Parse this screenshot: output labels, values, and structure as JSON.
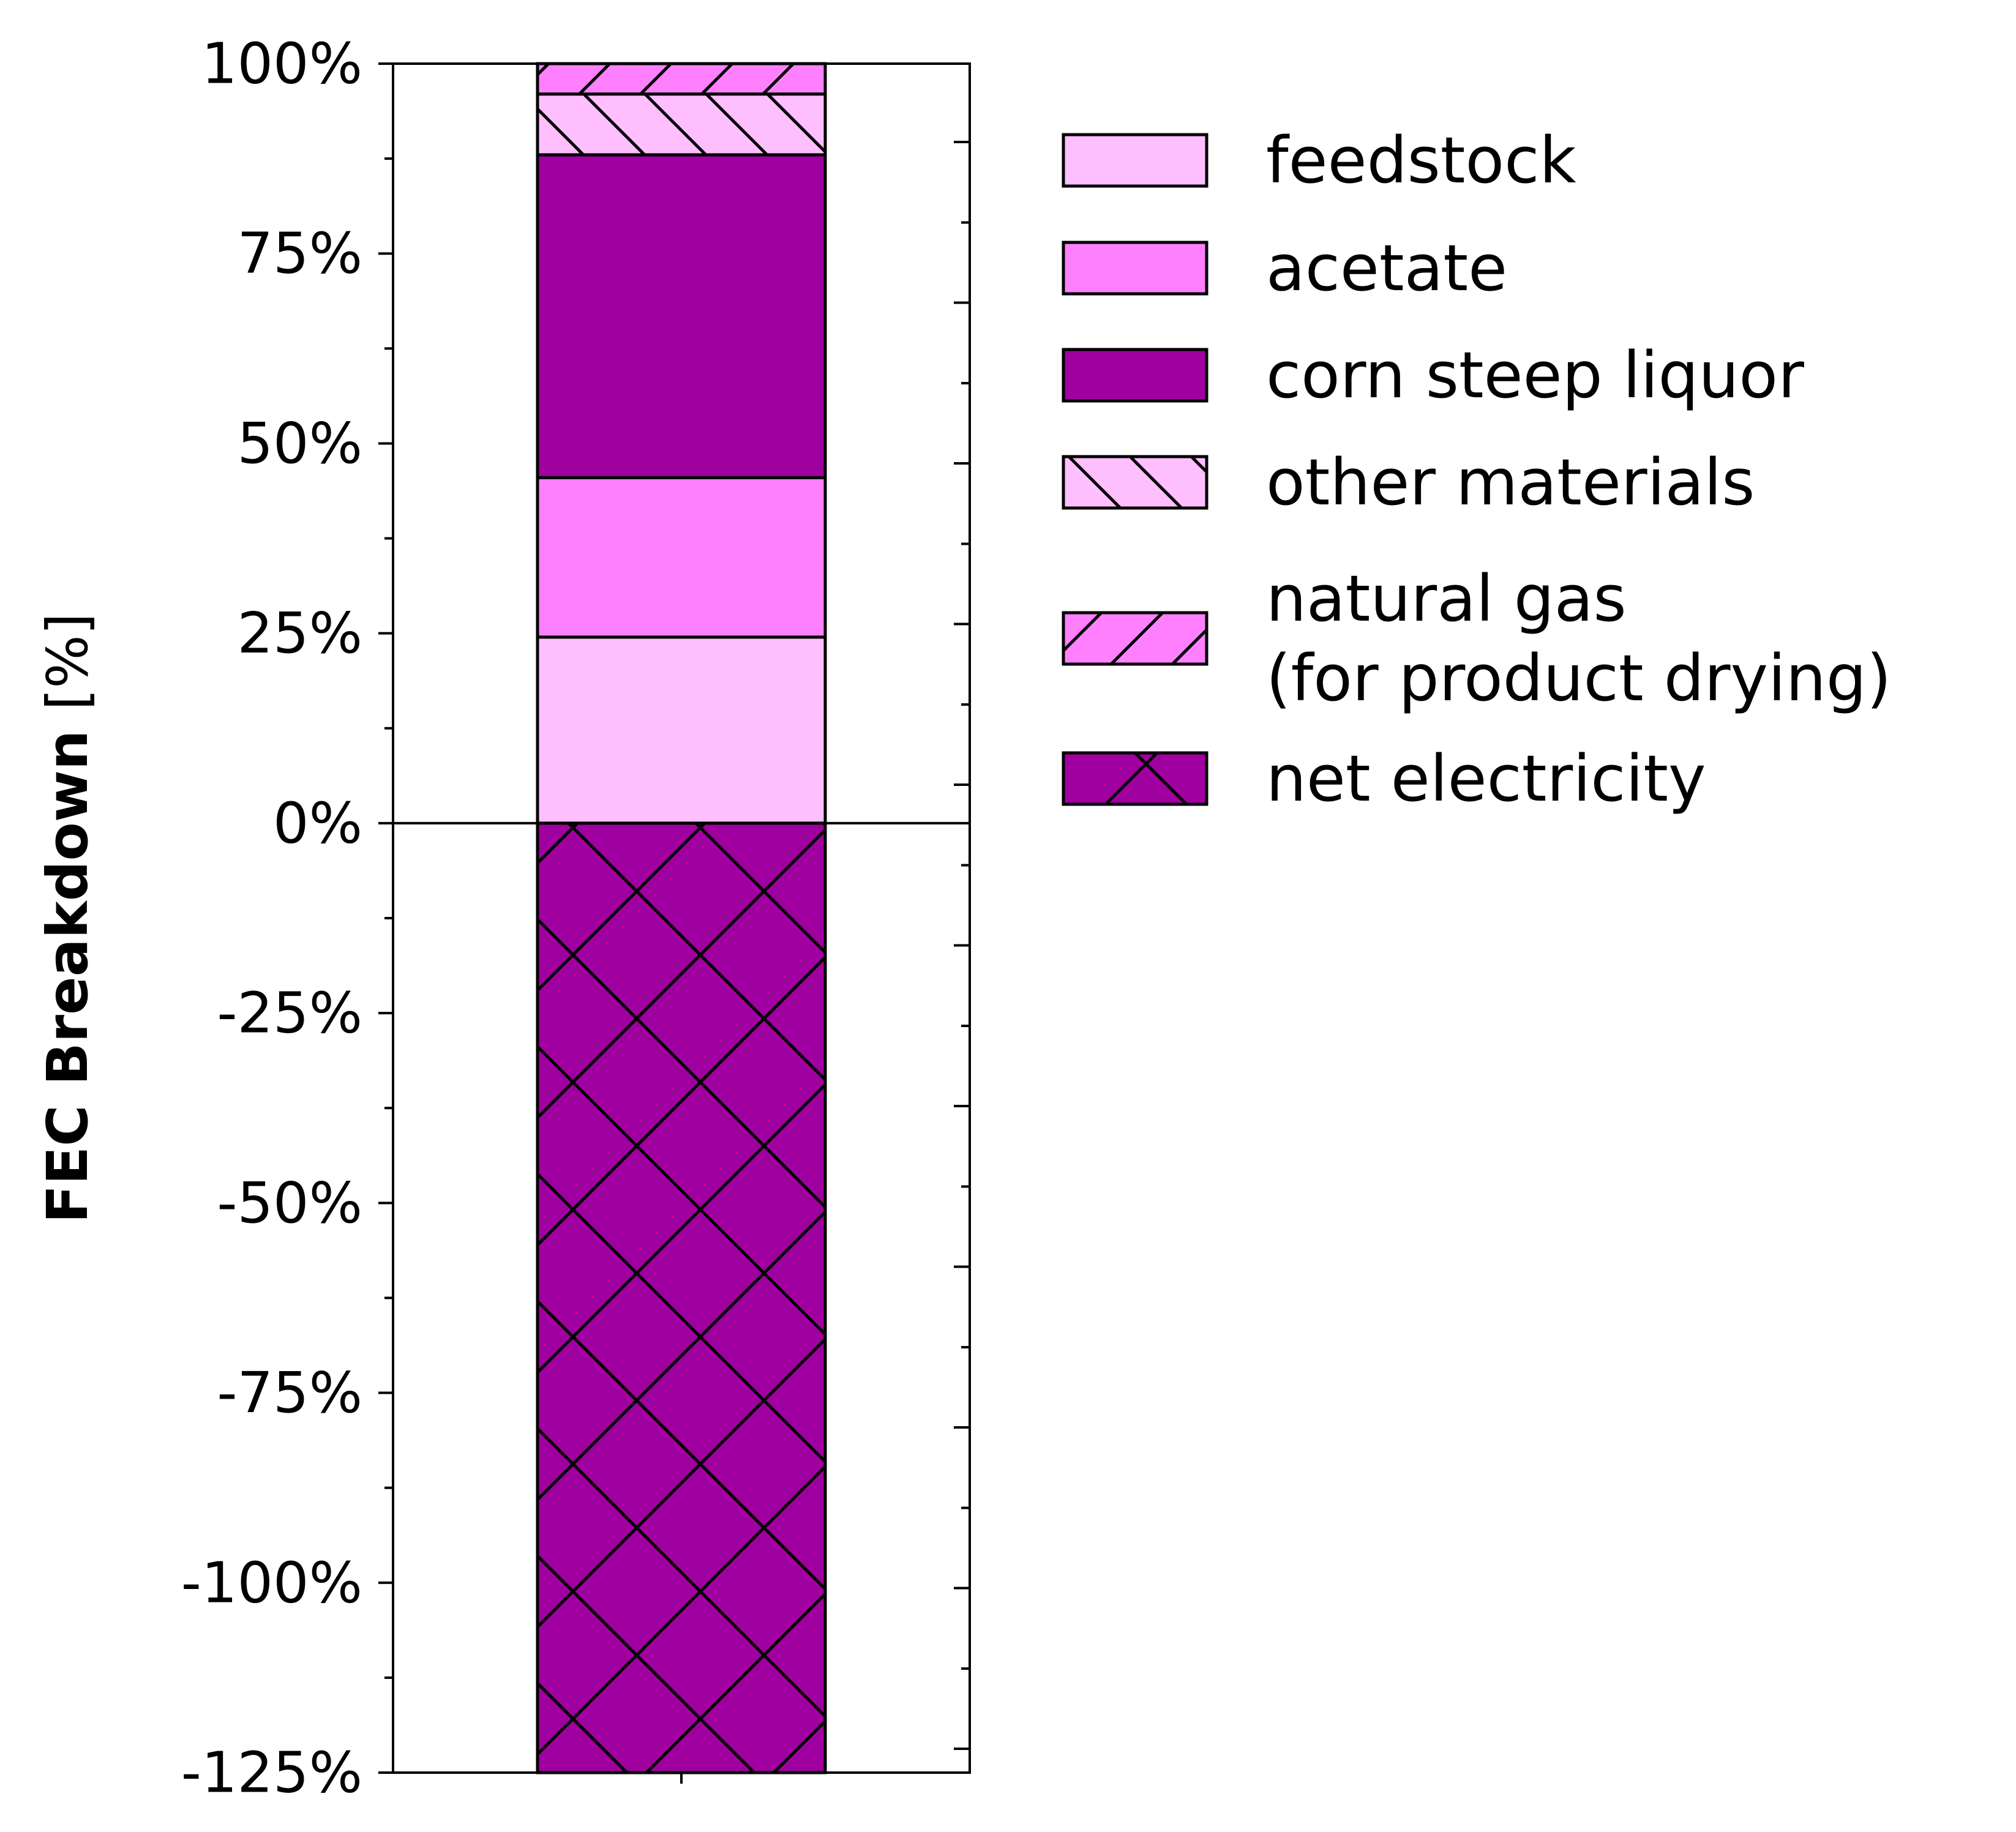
{
  "chart_data": {
    "type": "bar",
    "stacked": true,
    "categories": [
      ""
    ],
    "ylabel_bold": "FEC Breakdown",
    "ylabel_unit": "[%]",
    "ylim": [
      -125,
      100
    ],
    "yticks": [
      100,
      75,
      50,
      25,
      0,
      -25,
      -50,
      -75,
      -100,
      -125
    ],
    "ytick_labels": [
      "100%",
      "75%",
      "50%",
      "25%",
      "0%",
      "-25%",
      "-50%",
      "-75%",
      "-100%",
      "-125%"
    ],
    "grid": false,
    "legend_placement": "outside upper right",
    "series": [
      {
        "name": "feedstock",
        "values": [
          24.5
        ],
        "color": "#FFBFFF",
        "hatch": "none"
      },
      {
        "name": "acetate",
        "values": [
          21.0
        ],
        "color": "#FF80FF",
        "hatch": "none"
      },
      {
        "name": "corn steep liquor",
        "values": [
          42.5
        ],
        "color": "#A0009F",
        "hatch": "none"
      },
      {
        "name": "other materials",
        "values": [
          8.0
        ],
        "color": "#FFBFFF",
        "hatch": "backslash"
      },
      {
        "name": "natural gas\n(for product drying)",
        "values": [
          4.0
        ],
        "color": "#FF80FF",
        "hatch": "slash"
      },
      {
        "name": "net electricity",
        "values": [
          -125
        ],
        "color": "#A0009F",
        "hatch": "cross"
      }
    ]
  }
}
